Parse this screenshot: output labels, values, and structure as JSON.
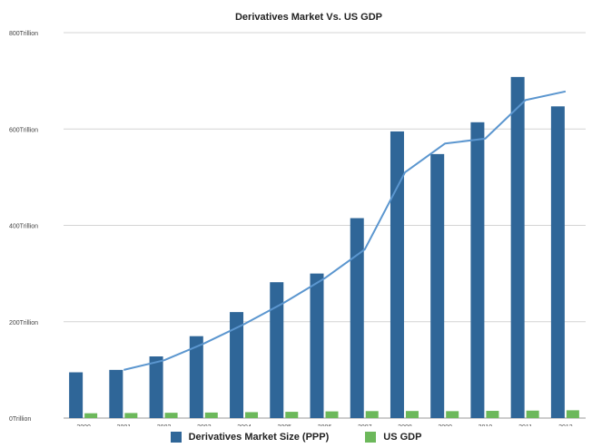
{
  "chart_data": {
    "type": "bar",
    "title": "Derivatives Market Vs. US GDP",
    "xlabel": "",
    "ylabel": "",
    "categories": [
      "2000",
      "2001",
      "2002",
      "2003",
      "2004",
      "2005",
      "2006",
      "2007",
      "2008",
      "2009",
      "2010",
      "2011",
      "2012"
    ],
    "ylim": [
      0,
      800
    ],
    "yticks": [
      0,
      200,
      400,
      600,
      800
    ],
    "ytick_labels": [
      "0Trillion",
      "200Trillion",
      "400Trillion",
      "600Trillion",
      "800Trillion"
    ],
    "grid": true,
    "legend_position": "bottom",
    "series": [
      {
        "name": "Derivatives Market Size (PPP)",
        "color": "#2f6698",
        "values": [
          95,
          100,
          128,
          170,
          220,
          282,
          300,
          415,
          595,
          548,
          614,
          708,
          647
        ]
      },
      {
        "name": "US GDP",
        "color": "#6cb85b",
        "values": [
          10,
          10.5,
          11,
          11.5,
          12.3,
          13,
          13.9,
          14.5,
          14.7,
          14.4,
          15,
          15.5,
          16.2
        ]
      }
    ],
    "trend_line": {
      "color": "#5b96cf",
      "values": [
        null,
        100,
        120,
        155,
        195,
        240,
        290,
        350,
        510,
        570,
        580,
        660,
        678
      ]
    }
  }
}
